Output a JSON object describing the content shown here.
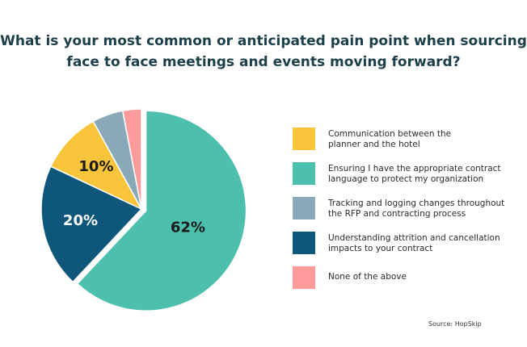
{
  "title_line1": "What is your most common or anticipated pain point when sourcing",
  "title_line2": "face to face meetings and events moving forward?",
  "source": "Source: HopSkip",
  "chart_data": {
    "type": "pie",
    "title": "What is your most common or anticipated pain point when sourcing face to face meetings and events moving forward?",
    "slices": [
      {
        "label": "Ensuring I have the appropriate contract language to protect my organization",
        "value": 62,
        "display": "62%",
        "color": "#4dbfad",
        "exploded": true
      },
      {
        "label": "Understanding attrition and cancellation impacts to your contract",
        "value": 20,
        "display": "20%",
        "color": "#0e567a"
      },
      {
        "label": "Communication between the planner and the hotel",
        "value": 10,
        "display": "10%",
        "color": "#f8c53a"
      },
      {
        "label": "Tracking and logging changes throughout the RFP and contracting process",
        "value": 5,
        "display": "",
        "color": "#8aa9b8"
      },
      {
        "label": "None of the above",
        "value": 3,
        "display": "",
        "color": "#fd9a9c"
      }
    ],
    "legend_order": [
      {
        "label_lines": [
          "Communication between the",
          "planner and the hotel"
        ],
        "color": "#f8c53a"
      },
      {
        "label_lines": [
          "Ensuring I have the appropriate contract",
          "language to protect my organization"
        ],
        "color": "#4dbfad"
      },
      {
        "label_lines": [
          "Tracking and logging changes throughout",
          "the RFP and contracting process"
        ],
        "color": "#8aa9b8"
      },
      {
        "label_lines": [
          "Understanding attrition and cancellation",
          "impacts to your contract"
        ],
        "color": "#0e567a"
      },
      {
        "label_lines": [
          "None of the above"
        ],
        "color": "#fd9a9c"
      }
    ],
    "legend_placement": "right"
  }
}
